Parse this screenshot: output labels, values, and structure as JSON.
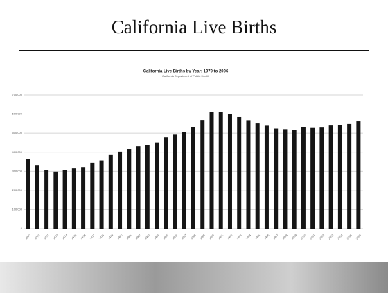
{
  "slide_title": "California Live Births",
  "chart_data": {
    "type": "bar",
    "title": "California Live Births by Year: 1970 to 2006",
    "subtitle": "California Department of Public Health",
    "categories": [
      "1970",
      "1971",
      "1972",
      "1973",
      "1974",
      "1975",
      "1976",
      "1977",
      "1978",
      "1979",
      "1980",
      "1981",
      "1982",
      "1983",
      "1984",
      "1985",
      "1986",
      "1987",
      "1988",
      "1989",
      "1990",
      "1991",
      "1992",
      "1993",
      "1994",
      "1995",
      "1996",
      "1997",
      "1998",
      "1999",
      "2000",
      "2001",
      "2002",
      "2003",
      "2004",
      "2005",
      "2006"
    ],
    "values": [
      363000,
      333000,
      307000,
      298000,
      306000,
      315000,
      322000,
      345000,
      357000,
      385000,
      403000,
      417000,
      431000,
      436000,
      451000,
      478000,
      492000,
      505000,
      532000,
      569000,
      612000,
      610000,
      601000,
      584000,
      568000,
      551000,
      539000,
      524000,
      521000,
      518000,
      531000,
      527000,
      529000,
      540000,
      544000,
      548000,
      562000
    ],
    "color": "#151515",
    "ylim": [
      0,
      700000
    ],
    "yticks": [
      0,
      {
        "value": 100000,
        "label": "100,000"
      },
      {
        "value": 200000,
        "label": "200,000"
      },
      {
        "value": 300000,
        "label": "300,000"
      },
      {
        "value": 400000,
        "label": "400,000"
      },
      {
        "value": 500000,
        "label": "500,000"
      },
      {
        "value": 600000,
        "label": "600,000"
      },
      {
        "value": 700000,
        "label": "700,000"
      }
    ],
    "grid": true
  }
}
